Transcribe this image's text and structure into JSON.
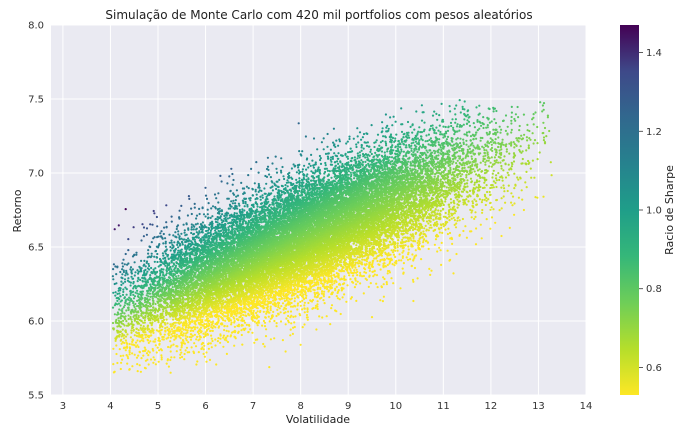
{
  "chart_data": {
    "type": "scatter",
    "title": "Simulação de Monte Carlo com 420 mil portfolios com pesos aleatórios",
    "xlabel": "Volatilidade",
    "ylabel": "Retorno",
    "xlim": [
      2.75,
      14
    ],
    "ylim": [
      5.5,
      8.0
    ],
    "x_ticks": [
      3,
      4,
      5,
      6,
      7,
      8,
      9,
      10,
      11,
      12,
      13,
      14
    ],
    "y_ticks": [
      5.5,
      6.0,
      6.5,
      7.0,
      7.5,
      8.0
    ],
    "x_tick_labels": [
      "3",
      "4",
      "5",
      "6",
      "7",
      "8",
      "9",
      "10",
      "11",
      "12",
      "13",
      "14"
    ],
    "y_tick_labels": [
      "5.5",
      "6.0",
      "6.5",
      "7.0",
      "7.5",
      "8.0"
    ],
    "grid": true,
    "background": "#eaeaf2",
    "colorbar": {
      "label": "Racio de Sharpe",
      "colormap": "viridis",
      "range": [
        0.53,
        1.47
      ],
      "ticks": [
        0.6,
        0.8,
        1.0,
        1.2,
        1.4
      ],
      "tick_labels": [
        "0.6",
        "0.8",
        "1.0",
        "1.2",
        "1.4"
      ]
    },
    "cloud": {
      "description_note": "",
      "x_range": [
        4.0,
        13.3
      ],
      "y_range": [
        5.65,
        7.5
      ],
      "sample_points": [
        {
          "x": 4.3,
          "y": 6.0
        },
        {
          "x": 4.5,
          "y": 6.3
        },
        {
          "x": 5.0,
          "y": 5.9
        },
        {
          "x": 5.5,
          "y": 6.8
        },
        {
          "x": 6.0,
          "y": 6.2
        },
        {
          "x": 6.5,
          "y": 7.0
        },
        {
          "x": 7.0,
          "y": 6.4
        },
        {
          "x": 7.5,
          "y": 7.1
        },
        {
          "x": 8.0,
          "y": 6.7
        },
        {
          "x": 8.5,
          "y": 7.2
        },
        {
          "x": 9.0,
          "y": 6.9
        },
        {
          "x": 9.5,
          "y": 7.3
        },
        {
          "x": 10.0,
          "y": 7.0
        },
        {
          "x": 10.5,
          "y": 6.8
        },
        {
          "x": 11.0,
          "y": 7.1
        },
        {
          "x": 11.5,
          "y": 6.9
        },
        {
          "x": 12.0,
          "y": 7.1
        },
        {
          "x": 12.5,
          "y": 7.2
        },
        {
          "x": 13.3,
          "y": 7.05
        }
      ]
    }
  }
}
